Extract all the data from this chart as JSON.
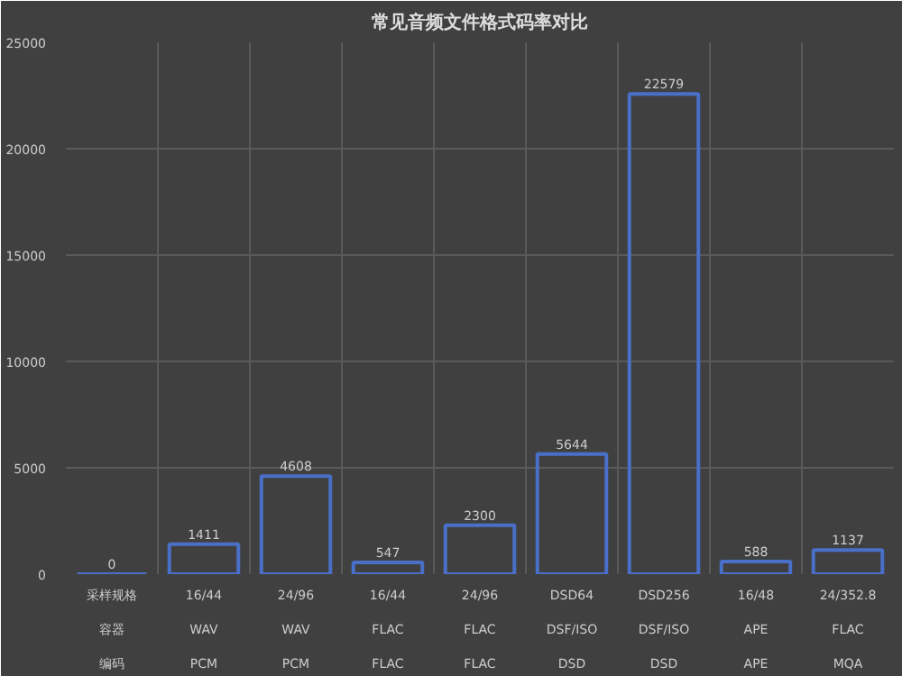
{
  "chart_data": {
    "type": "bar",
    "title": "常见音频文件格式码率对比",
    "annotations": [
      "采样规格",
      "容器",
      "编码"
    ],
    "categories": [
      null,
      "16/44\nWAV\nPCM",
      "24/96\nWAV\nPCM",
      "16/44\nFLAC\nFLAC",
      "24/96\nFLAC\nFLAC",
      "DSD64\nDSF/ISO\nDSD",
      "DSD256\nDSF/ISO\nDSD",
      "16/48\nAPE\nAPE",
      "24/352.8\nFLAC\nMQA"
    ],
    "series": [
      {
        "color": "#4a6fc8",
        "values": [
          0,
          1411,
          4608,
          547,
          2300,
          5644,
          22579,
          588,
          1137
        ]
      }
    ],
    "ylim": [
      0,
      25000
    ],
    "yticks": [
      0,
      5000,
      10000,
      15000,
      20000,
      25000
    ],
    "grid": true,
    "data_labels": true
  }
}
